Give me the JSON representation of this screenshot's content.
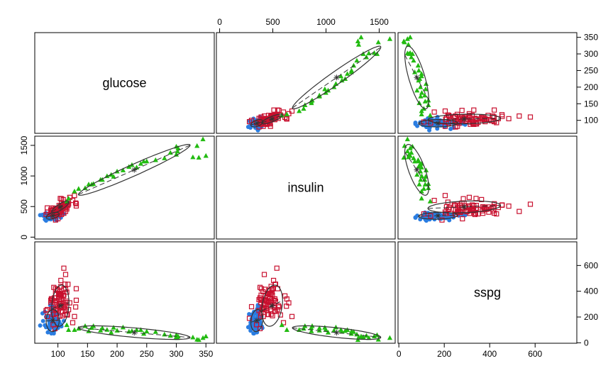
{
  "chart_data": {
    "type": "scatter",
    "variables": [
      "glucose",
      "insulin",
      "sspg"
    ],
    "diagonal_labels": [
      "glucose",
      "insulin",
      "sspg"
    ],
    "ranges": {
      "glucose": [
        70,
        355
      ],
      "insulin": [
        20,
        1600
      ],
      "sspg": [
        20,
        760
      ]
    },
    "ticks": {
      "glucose": [
        100,
        150,
        200,
        250,
        300,
        350
      ],
      "insulin": [
        0,
        500,
        1000,
        1500
      ],
      "sspg": [
        0,
        200,
        400,
        600
      ]
    },
    "colors": {
      "group1": "#2a7de1",
      "group2": "#c8102e",
      "group3": "#22bb11",
      "ellipse": "#333333"
    },
    "groups": [
      {
        "color": "#2a7de1",
        "marker": "circle",
        "points": [
          [
            80,
            356,
            124
          ],
          [
            97,
            289,
            117
          ],
          [
            105,
            319,
            143
          ],
          [
            90,
            356,
            199
          ],
          [
            90,
            323,
            240
          ],
          [
            86,
            381,
            157
          ],
          [
            100,
            350,
            221
          ],
          [
            85,
            301,
            186
          ],
          [
            97,
            379,
            142
          ],
          [
            97,
            296,
            131
          ],
          [
            91,
            353,
            221
          ],
          [
            87,
            306,
            178
          ],
          [
            78,
            290,
            136
          ],
          [
            90,
            371,
            200
          ],
          [
            86,
            312,
            208
          ],
          [
            80,
            393,
            202
          ],
          [
            90,
            364,
            152
          ],
          [
            99,
            359,
            185
          ],
          [
            85,
            296,
            116
          ],
          [
            90,
            345,
            123
          ],
          [
            90,
            378,
            136
          ],
          [
            88,
            304,
            134
          ],
          [
            95,
            347,
            184
          ],
          [
            90,
            327,
            192
          ],
          [
            92,
            386,
            279
          ],
          [
            74,
            365,
            228
          ],
          [
            98,
            365,
            145
          ],
          [
            100,
            352,
            172
          ],
          [
            86,
            325,
            179
          ],
          [
            98,
            321,
            222
          ],
          [
            70,
            360,
            134
          ],
          [
            99,
            336,
            143
          ],
          [
            75,
            352,
            169
          ],
          [
            90,
            353,
            263
          ],
          [
            85,
            373,
            174
          ],
          [
            99,
            376,
            134
          ],
          [
            100,
            367,
            182
          ],
          [
            78,
            335,
            241
          ],
          [
            106,
            396,
            128
          ],
          [
            98,
            277,
            222
          ],
          [
            102,
            378,
            165
          ],
          [
            90,
            360,
            282
          ],
          [
            94,
            291,
            94
          ],
          [
            80,
            269,
            121
          ],
          [
            93,
            318,
            73
          ],
          [
            86,
            328,
            106
          ],
          [
            85,
            334,
            118
          ],
          [
            96,
            356,
            112
          ],
          [
            88,
            291,
            157
          ],
          [
            87,
            360,
            292
          ],
          [
            94,
            313,
            200
          ],
          [
            93,
            306,
            220
          ],
          [
            86,
            319,
            144
          ],
          [
            86,
            349,
            109
          ],
          [
            96,
            332,
            151
          ],
          [
            86,
            323,
            158
          ],
          [
            89,
            323,
            73
          ],
          [
            83,
            351,
            81
          ],
          [
            100,
            402,
            115
          ],
          [
            110,
            379,
            170
          ],
          [
            90,
            336,
            181
          ],
          [
            100,
            363,
            130
          ],
          [
            88,
            362,
            137
          ],
          [
            100,
            348,
            154
          ],
          [
            89,
            354,
            152
          ],
          [
            91,
            344,
            166
          ],
          [
            91,
            370,
            263
          ],
          [
            96,
            350,
            240
          ]
        ]
      },
      {
        "color": "#c8102e",
        "marker": "square",
        "points": [
          [
            98,
            400,
            258
          ],
          [
            104,
            414,
            273
          ],
          [
            106,
            370,
            335
          ],
          [
            103,
            385,
            206
          ],
          [
            96,
            465,
            380
          ],
          [
            97,
            441,
            324
          ],
          [
            94,
            380,
            349
          ],
          [
            91,
            435,
            265
          ],
          [
            102,
            460,
            321
          ],
          [
            102,
            415,
            299
          ],
          [
            88,
            389,
            330
          ],
          [
            97,
            449,
            327
          ],
          [
            103,
            427,
            305
          ],
          [
            103,
            403,
            271
          ],
          [
            89,
            474,
            342
          ],
          [
            92,
            476,
            325
          ],
          [
            92,
            452,
            219
          ],
          [
            88,
            444,
            315
          ],
          [
            98,
            430,
            296
          ],
          [
            99,
            462,
            407
          ],
          [
            88,
            426,
            329
          ],
          [
            104,
            452,
            359
          ],
          [
            98,
            423,
            264
          ],
          [
            115,
            493,
            393
          ],
          [
            105,
            507,
            484
          ],
          [
            110,
            538,
            579
          ],
          [
            105,
            484,
            438
          ],
          [
            110,
            512,
            290
          ],
          [
            105,
            451,
            379
          ],
          [
            113,
            490,
            414
          ],
          [
            102,
            478,
            375
          ],
          [
            110,
            501,
            419
          ],
          [
            90,
            394,
            338
          ],
          [
            117,
            522,
            454
          ],
          [
            112,
            480,
            295
          ],
          [
            110,
            520,
            270
          ],
          [
            108,
            524,
            244
          ],
          [
            110,
            480,
            280
          ],
          [
            95,
            388,
            312
          ],
          [
            113,
            517,
            248
          ],
          [
            131,
            546,
            420
          ],
          [
            118,
            542,
            257
          ],
          [
            115,
            526,
            323
          ],
          [
            110,
            510,
            310
          ],
          [
            101,
            455,
            385
          ],
          [
            105,
            496,
            370
          ],
          [
            99,
            430,
            415
          ],
          [
            82,
            478,
            258
          ],
          [
            96,
            393,
            420
          ],
          [
            104,
            483,
            380
          ],
          [
            102,
            519,
            341
          ],
          [
            112,
            484,
            222
          ],
          [
            115,
            491,
            312
          ],
          [
            103,
            408,
            396
          ],
          [
            112,
            526,
            455
          ],
          [
            130,
            558,
            278
          ],
          [
            116,
            572,
            216
          ],
          [
            106,
            552,
            287
          ],
          [
            100,
            446,
            250
          ],
          [
            109,
            614,
            364
          ],
          [
            104,
            632,
            340
          ],
          [
            106,
            628,
            284
          ],
          [
            125,
            600,
            156
          ],
          [
            128,
            680,
            204
          ],
          [
            108,
            497,
            210
          ],
          [
            82,
            410,
            204
          ],
          [
            92,
            347,
            140
          ],
          [
            95,
            380,
            110
          ],
          [
            96,
            280,
            190
          ],
          [
            131,
            510,
            330
          ],
          [
            106,
            430,
            368
          ],
          [
            97,
            390,
            228
          ],
          [
            80,
            370,
            250
          ],
          [
            110,
            390,
            370
          ],
          [
            120,
            650,
            310
          ],
          [
            113,
            420,
            530
          ],
          [
            93,
            380,
            430
          ],
          [
            115,
            460,
            220
          ],
          [
            100,
            300,
            280
          ],
          [
            96,
            420,
            260
          ]
        ]
      },
      {
        "color": "#22bb11",
        "marker": "triangle",
        "points": [
          [
            128,
            748,
            100
          ],
          [
            146,
            802,
            130
          ],
          [
            152,
            863,
            90
          ],
          [
            157,
            861,
            116
          ],
          [
            172,
            938,
            96
          ],
          [
            175,
            938,
            114
          ],
          [
            183,
            998,
            101
          ],
          [
            190,
            1020,
            80
          ],
          [
            200,
            1075,
            95
          ],
          [
            210,
            1093,
            120
          ],
          [
            220,
            1150,
            87
          ],
          [
            225,
            1180,
            92
          ],
          [
            233,
            1140,
            100
          ],
          [
            240,
            1201,
            100
          ],
          [
            245,
            1238,
            70
          ],
          [
            250,
            1240,
            88
          ],
          [
            265,
            1260,
            85
          ],
          [
            280,
            1290,
            65
          ],
          [
            290,
            1380,
            55
          ],
          [
            300,
            1350,
            45
          ],
          [
            302,
            1403,
            38
          ],
          [
            303,
            1454,
            50
          ],
          [
            300,
            1480,
            60
          ],
          [
            328,
            1307,
            42
          ],
          [
            335,
            1492,
            25
          ],
          [
            338,
            1300,
            22
          ],
          [
            345,
            1600,
            38
          ],
          [
            350,
            1330,
            50
          ],
          [
            135,
            790,
            110
          ],
          [
            160,
            870,
            130
          ],
          [
            115,
            585,
            138
          ],
          [
            118,
            632,
            100
          ],
          [
            194,
            989,
            118
          ]
        ]
      }
    ],
    "ellipses": [
      {
        "group": 1,
        "center": [
          91.2,
          350.0,
          172.6
        ],
        "sd": [
          6.9,
          35.4,
          53.6
        ],
        "corr": {
          "glucose-insulin": 0.45,
          "glucose-sspg": 0.05,
          "insulin-sspg": 0.15
        }
      },
      {
        "group": 2,
        "center": [
          104.0,
          494.0,
          288.0
        ],
        "sd": [
          9.1,
          61.0,
          100.0
        ],
        "corr": {
          "glucose-insulin": 0.81,
          "glucose-sspg": 0.15,
          "insulin-sspg": 0.25
        }
      },
      {
        "group": 3,
        "center": [
          229.0,
          1100.0,
          79.0
        ],
        "sd": [
          59.0,
          260.0,
          33.0
        ],
        "corr": {
          "glucose-insulin": 0.97,
          "glucose-sspg": -0.72,
          "insulin-sspg": -0.7
        }
      }
    ]
  }
}
